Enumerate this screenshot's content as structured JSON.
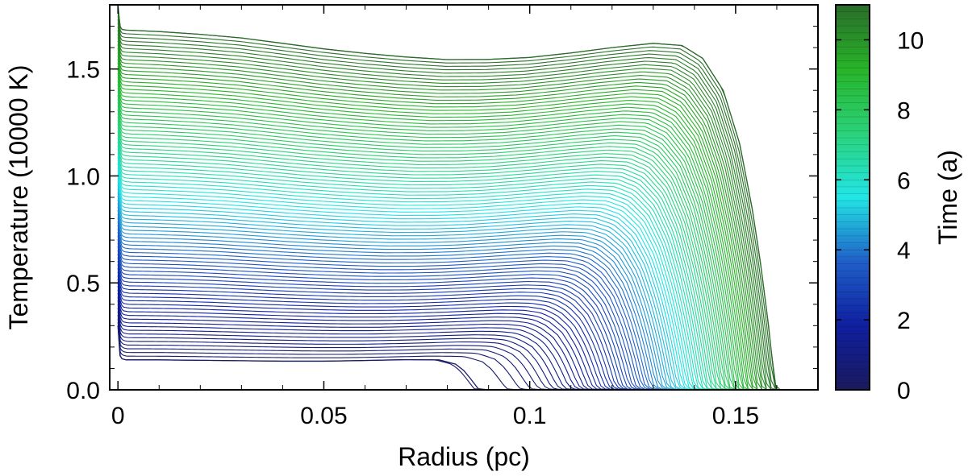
{
  "chart_data": {
    "type": "line",
    "xlabel": "Radius (pc)",
    "ylabel": "Temperature (10000 K)",
    "xlim": [
      -0.002,
      0.17
    ],
    "ylim": [
      0,
      1.8
    ],
    "x_ticks": [
      0,
      0.05,
      0.1,
      0.15
    ],
    "x_tick_labels": [
      "0",
      "0.05",
      "0.1",
      "0.15"
    ],
    "y_ticks": [
      0,
      0.5,
      1.0,
      1.5
    ],
    "y_tick_labels": [
      "0.0",
      "0.5",
      "1.0",
      "1.5"
    ],
    "grid": false,
    "colorbar": {
      "label": "Time (a)",
      "range": [
        0,
        11
      ],
      "ticks": [
        0,
        2,
        4,
        6,
        8,
        10
      ],
      "tick_labels": [
        "0",
        "2",
        "4",
        "6",
        "8",
        "10"
      ],
      "stops": [
        "#1a1a5e",
        "#0f1fa0",
        "#1f5fc8",
        "#22e6e6",
        "#2ad27a",
        "#28b428",
        "#2a6b2a"
      ]
    },
    "series": [
      {
        "time": 0.2,
        "x": [
          0,
          0.0005,
          0.001,
          0.002,
          0.01,
          0.02,
          0.03,
          0.04,
          0.05,
          0.06,
          0.07,
          0.078,
          0.082,
          0.084,
          0.0855,
          0.0865,
          0.0875,
          0.09,
          0.1,
          0.12,
          0.14,
          0.16
        ],
        "y": [
          0.3,
          0.16,
          0.145,
          0.14,
          0.14,
          0.138,
          0.136,
          0.134,
          0.134,
          0.137,
          0.141,
          0.14,
          0.12,
          0.09,
          0.055,
          0.03,
          0.005,
          0,
          0,
          0,
          0,
          0
        ]
      },
      {
        "time": 11.0,
        "x": [
          0,
          0.0005,
          0.001,
          0.002,
          0.01,
          0.02,
          0.03,
          0.04,
          0.05,
          0.06,
          0.07,
          0.08,
          0.09,
          0.1,
          0.11,
          0.12,
          0.13,
          0.137,
          0.142,
          0.147,
          0.151,
          0.154,
          0.156,
          0.158,
          0.159,
          0.1595,
          0.16
        ],
        "y": [
          1.8,
          1.7,
          1.685,
          1.682,
          1.675,
          1.662,
          1.645,
          1.62,
          1.594,
          1.573,
          1.556,
          1.544,
          1.545,
          1.554,
          1.575,
          1.6,
          1.62,
          1.61,
          1.55,
          1.4,
          1.15,
          0.85,
          0.6,
          0.3,
          0.12,
          0.04,
          0
        ]
      }
    ]
  }
}
